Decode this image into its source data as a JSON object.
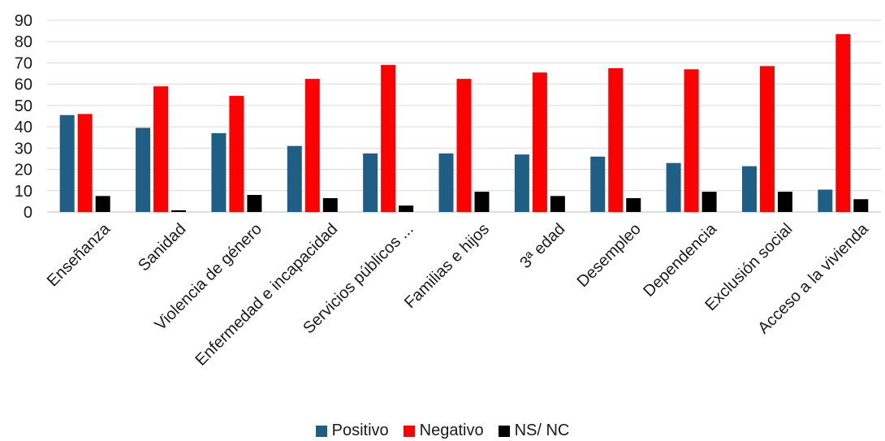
{
  "chart_data": {
    "type": "bar",
    "categories": [
      "Enseñanza",
      "Sanidad",
      "Violencia de género",
      "Enfermedad e incapacidad",
      "Servicios públicos ...",
      "Familias e hijos",
      "3ª edad",
      "Desempleo",
      "Dependencia",
      "Exclusión social",
      "Acceso a la vivienda"
    ],
    "series": [
      {
        "name": "Positivo",
        "color": "#1f5f86",
        "values": [
          45.5,
          39.5,
          37,
          31,
          27.5,
          27.5,
          27,
          26,
          23,
          21.5,
          10.5
        ]
      },
      {
        "name": "Negativo",
        "color": "#ff0000",
        "values": [
          46,
          59,
          54.5,
          62.5,
          69,
          62.5,
          65.5,
          67.5,
          67,
          68.5,
          83.5
        ]
      },
      {
        "name": "NS/ NC",
        "color": "#000000",
        "values": [
          7.5,
          0.8,
          8,
          6.5,
          3,
          9.5,
          7.5,
          6.5,
          9.5,
          9.5,
          6
        ]
      }
    ],
    "ylim": [
      0,
      90
    ],
    "yticks": [
      "0",
      "10",
      "20",
      "30",
      "40",
      "50",
      "60",
      "70",
      "80",
      "90"
    ],
    "grid": true,
    "legend_position": "bottom"
  }
}
